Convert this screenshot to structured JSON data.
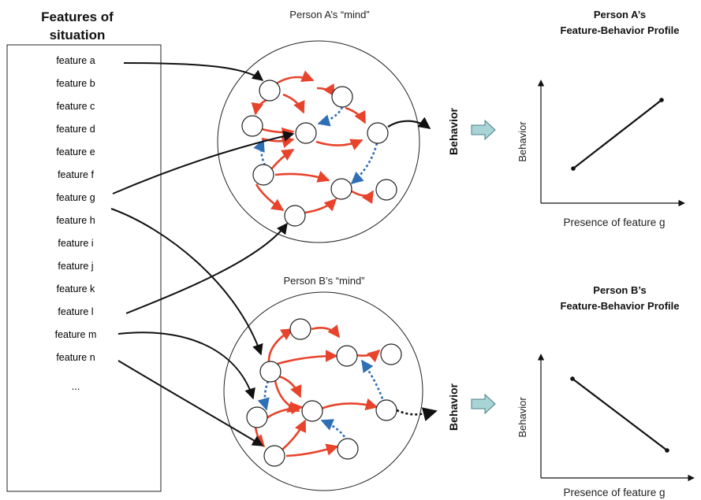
{
  "features_panel": {
    "title_line1": "Features of",
    "title_line2": "situation",
    "features": [
      "feature a",
      "feature b",
      "feature c",
      "feature d",
      "feature e",
      "feature f",
      "feature g",
      "feature h",
      "feature i",
      "feature j",
      "feature k",
      "feature l",
      "feature m",
      "feature n"
    ],
    "ellipsis": "..."
  },
  "person_a": {
    "mind_title": "Person A’s “mind”",
    "behavior_label": "Behavior",
    "profile_title_line1": "Person A’s",
    "profile_title_line2": "Feature-Behavior Profile",
    "profile_ylabel": "Behavior",
    "profile_xlabel": "Presence of feature g"
  },
  "person_b": {
    "mind_title": "Person B’s “mind”",
    "behavior_label": "Behavior",
    "profile_title_line1": "Person B’s",
    "profile_title_line2": "Feature-Behavior Profile",
    "profile_ylabel": "Behavior",
    "profile_xlabel": "Presence of feature g"
  },
  "colors": {
    "excitatory_arrow": "#e8432b",
    "inhibitory_arrow": "#2f6fb5",
    "behavior_arrow_fill": "#a9d4d6",
    "ink": "#111111"
  }
}
